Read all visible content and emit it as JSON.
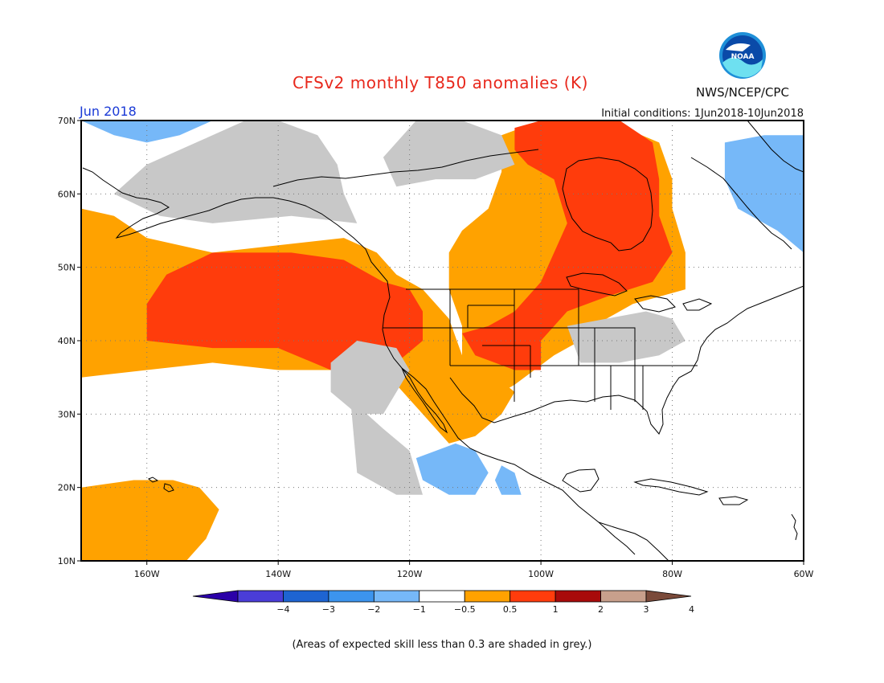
{
  "header": {
    "title": "CFSv2 monthly T850 anomalies (K)",
    "month": "Jun 2018",
    "initial_conditions": "Initial conditions: 1Jun2018-10Jun2018",
    "agency": "NWS/NCEP/CPC",
    "logo_text": "NOAA"
  },
  "map": {
    "lon_range": [
      -170,
      -60
    ],
    "lat_range": [
      10,
      70
    ],
    "lon_ticks": [
      {
        "lon": -160,
        "label": "160W"
      },
      {
        "lon": -140,
        "label": "140W"
      },
      {
        "lon": -120,
        "label": "120W"
      },
      {
        "lon": -100,
        "label": "100W"
      },
      {
        "lon": -80,
        "label": "80W"
      },
      {
        "lon": -60,
        "label": "60W"
      }
    ],
    "lat_ticks": [
      {
        "lat": 10,
        "label": "10N"
      },
      {
        "lat": 20,
        "label": "20N"
      },
      {
        "lat": 30,
        "label": "30N"
      },
      {
        "lat": 40,
        "label": "40N"
      },
      {
        "lat": 50,
        "label": "50N"
      },
      {
        "lat": 60,
        "label": "60N"
      },
      {
        "lat": 70,
        "label": "70N"
      }
    ],
    "regions": [
      {
        "class": "0.5-1",
        "color": "#ffa200",
        "points": [
          [
            -170,
            58
          ],
          [
            -165,
            57
          ],
          [
            -160,
            54
          ],
          [
            -150,
            52
          ],
          [
            -140,
            53
          ],
          [
            -130,
            54
          ],
          [
            -125,
            52
          ],
          [
            -122,
            49
          ],
          [
            -118,
            47
          ],
          [
            -114,
            43
          ],
          [
            -112,
            38
          ],
          [
            -108,
            36
          ],
          [
            -104,
            33
          ],
          [
            -106,
            30
          ],
          [
            -110,
            27
          ],
          [
            -114,
            26
          ],
          [
            -118,
            30
          ],
          [
            -122,
            34
          ],
          [
            -127,
            36
          ],
          [
            -133,
            36
          ],
          [
            -140,
            36
          ],
          [
            -150,
            37
          ],
          [
            -160,
            36
          ],
          [
            -170,
            35
          ]
        ]
      },
      {
        "class": "0.5-1",
        "color": "#ffa200",
        "points": [
          [
            -106,
            68
          ],
          [
            -100,
            70
          ],
          [
            -90,
            70
          ],
          [
            -82,
            67
          ],
          [
            -80,
            62
          ],
          [
            -80,
            58
          ],
          [
            -78,
            52
          ],
          [
            -78,
            47
          ],
          [
            -86,
            45
          ],
          [
            -90,
            43
          ],
          [
            -94,
            40
          ],
          [
            -98,
            38
          ],
          [
            -104,
            34
          ],
          [
            -108,
            32
          ],
          [
            -112,
            36
          ],
          [
            -112,
            42
          ],
          [
            -114,
            47
          ],
          [
            -114,
            52
          ],
          [
            -112,
            55
          ],
          [
            -108,
            58
          ],
          [
            -106,
            63
          ]
        ]
      },
      {
        "class": "0.5-1",
        "color": "#ffa200",
        "points": [
          [
            -170,
            20
          ],
          [
            -162,
            21
          ],
          [
            -156,
            21
          ],
          [
            -152,
            20
          ],
          [
            -149,
            17
          ],
          [
            -151,
            13
          ],
          [
            -154,
            10
          ],
          [
            -170,
            10
          ]
        ]
      },
      {
        "class": "1-2",
        "color": "#ff3c0c",
        "points": [
          [
            -157,
            49
          ],
          [
            -150,
            52
          ],
          [
            -138,
            52
          ],
          [
            -130,
            51
          ],
          [
            -124,
            48
          ],
          [
            -120,
            47
          ],
          [
            -118,
            44
          ],
          [
            -118,
            40
          ],
          [
            -122,
            37
          ],
          [
            -126,
            36
          ],
          [
            -132,
            36
          ],
          [
            -140,
            39
          ],
          [
            -150,
            39
          ],
          [
            -160,
            40
          ],
          [
            -160,
            45
          ]
        ]
      },
      {
        "class": "1-2",
        "color": "#ff3c0c",
        "points": [
          [
            -104,
            69
          ],
          [
            -100,
            70
          ],
          [
            -88,
            70
          ],
          [
            -83,
            67
          ],
          [
            -82,
            62
          ],
          [
            -82,
            57
          ],
          [
            -80,
            52
          ],
          [
            -83,
            48
          ],
          [
            -90,
            46
          ],
          [
            -96,
            44
          ],
          [
            -100,
            40
          ],
          [
            -100,
            36
          ],
          [
            -104,
            36
          ],
          [
            -110,
            38
          ],
          [
            -112,
            41
          ],
          [
            -108,
            42
          ],
          [
            -104,
            44
          ],
          [
            -100,
            48
          ],
          [
            -96,
            56
          ],
          [
            -98,
            62
          ],
          [
            -102,
            64
          ],
          [
            -104,
            66
          ]
        ]
      },
      {
        "class": "-1--0.5",
        "color": "#76b8f8",
        "points": [
          [
            -116,
            25
          ],
          [
            -113,
            26
          ],
          [
            -110,
            25
          ],
          [
            -108,
            22
          ],
          [
            -110,
            19
          ],
          [
            -114,
            19
          ],
          [
            -118,
            21
          ],
          [
            -119,
            24
          ]
        ]
      },
      {
        "class": "-1--0.5",
        "color": "#76b8f8",
        "points": [
          [
            -72,
            67
          ],
          [
            -66,
            68
          ],
          [
            -60,
            68
          ],
          [
            -60,
            52
          ],
          [
            -64,
            55
          ],
          [
            -70,
            58
          ],
          [
            -72,
            62
          ]
        ]
      },
      {
        "class": "-1--0.5",
        "color": "#76b8f8",
        "points": [
          [
            -170,
            70
          ],
          [
            -165,
            68
          ],
          [
            -160,
            67
          ],
          [
            -155,
            68
          ],
          [
            -150,
            70
          ]
        ]
      },
      {
        "class": "-1--0.5",
        "color": "#76b8f8",
        "points": [
          [
            -106,
            23
          ],
          [
            -104,
            22
          ],
          [
            -103,
            19
          ],
          [
            -106,
            19
          ],
          [
            -107,
            21
          ]
        ]
      },
      {
        "class": "grey",
        "color": "#c8c8c8",
        "points": [
          [
            -140,
            70
          ],
          [
            -134,
            68
          ],
          [
            -131,
            64
          ],
          [
            -130,
            60
          ],
          [
            -128,
            56
          ],
          [
            -138,
            57
          ],
          [
            -150,
            56
          ],
          [
            -158,
            57
          ],
          [
            -165,
            60
          ],
          [
            -160,
            64
          ],
          [
            -155,
            66
          ],
          [
            -150,
            68
          ],
          [
            -145,
            70
          ]
        ]
      },
      {
        "class": "grey",
        "color": "#c8c8c8",
        "points": [
          [
            -119,
            70
          ],
          [
            -112,
            70
          ],
          [
            -106,
            68
          ],
          [
            -104,
            64
          ],
          [
            -110,
            62
          ],
          [
            -116,
            62
          ],
          [
            -122,
            61
          ],
          [
            -124,
            65
          ]
        ]
      },
      {
        "class": "grey",
        "color": "#c8c8c8",
        "points": [
          [
            -128,
            40
          ],
          [
            -122,
            39
          ],
          [
            -120,
            36
          ],
          [
            -122,
            33
          ],
          [
            -124,
            30
          ],
          [
            -128,
            30
          ],
          [
            -132,
            33
          ],
          [
            -132,
            37
          ]
        ]
      },
      {
        "class": "grey",
        "color": "#c8c8c8",
        "points": [
          [
            -129,
            32
          ],
          [
            -124,
            28
          ],
          [
            -120,
            25
          ],
          [
            -118,
            19
          ],
          [
            -122,
            19
          ],
          [
            -128,
            22
          ]
        ]
      },
      {
        "class": "grey",
        "color": "#c8c8c8",
        "points": [
          [
            -96,
            42
          ],
          [
            -90,
            43
          ],
          [
            -84,
            44
          ],
          [
            -80,
            43
          ],
          [
            -78,
            40
          ],
          [
            -82,
            38
          ],
          [
            -88,
            37
          ],
          [
            -94,
            37
          ]
        ]
      }
    ],
    "states_note": "outline"
  },
  "colorbar": {
    "segments": [
      {
        "range": "< -4",
        "color": "#2b00a8"
      },
      {
        "range": "-4 to -3",
        "color": "#4a3dd8"
      },
      {
        "range": "-3 to -2",
        "color": "#1e64d2"
      },
      {
        "range": "-2 to -1",
        "color": "#3c94ee"
      },
      {
        "range": "-1 to -0.5",
        "color": "#76b8f8"
      },
      {
        "range": "-0.5 to 0.5",
        "color": "#ffffff"
      },
      {
        "range": "0.5 to 1",
        "color": "#ffa200"
      },
      {
        "range": "1 to 2",
        "color": "#ff3c0c"
      },
      {
        "range": "2 to 3",
        "color": "#a80a0a"
      },
      {
        "range": "3 to 4",
        "color": "#c8a08c"
      },
      {
        "range": "> 4",
        "color": "#7a4a3a"
      }
    ],
    "tick_labels": [
      "−4",
      "−3",
      "−2",
      "−1",
      "−0.5",
      "0.5",
      "1",
      "2",
      "3",
      "4"
    ]
  },
  "footer": {
    "note": "(Areas of expected skill less than 0.3 are shaded in grey.)"
  }
}
